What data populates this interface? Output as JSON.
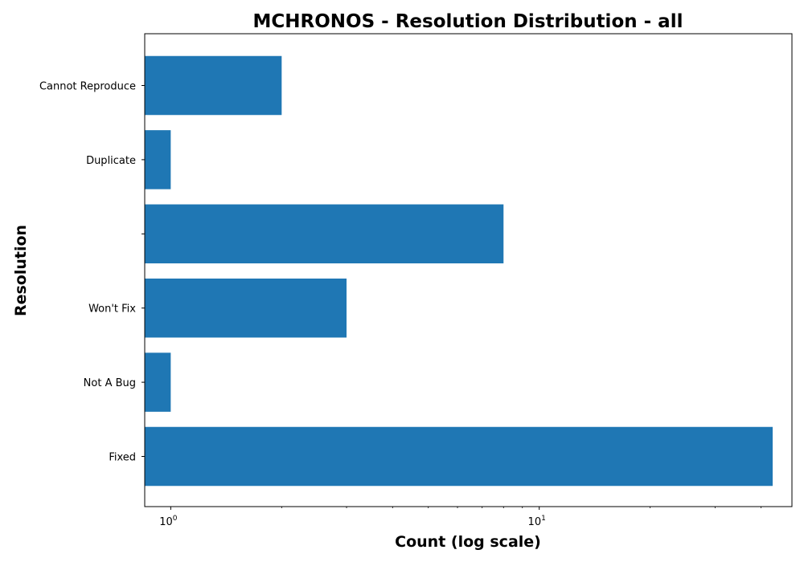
{
  "chart_data": {
    "type": "bar",
    "orientation": "horizontal",
    "title": "MCHRONOS - Resolution Distribution - all",
    "xlabel": "Count (log scale)",
    "ylabel": "Resolution",
    "x_scale": "log",
    "xlim": [
      0.85,
      48.5
    ],
    "categories": [
      "Fixed",
      "Not A Bug",
      "Won't Fix",
      "",
      "Duplicate",
      "Cannot Reproduce"
    ],
    "values": [
      43,
      1,
      3,
      8,
      1,
      2
    ],
    "x_ticks": [
      {
        "value": 1,
        "base": "10",
        "exp": "0"
      },
      {
        "value": 10,
        "base": "10",
        "exp": "1"
      }
    ],
    "minor_ticks": [
      2,
      3,
      4,
      5,
      6,
      7,
      8,
      9,
      20,
      30,
      40
    ],
    "bar_color": "#1f77b4",
    "grid": false,
    "legend": "none"
  }
}
